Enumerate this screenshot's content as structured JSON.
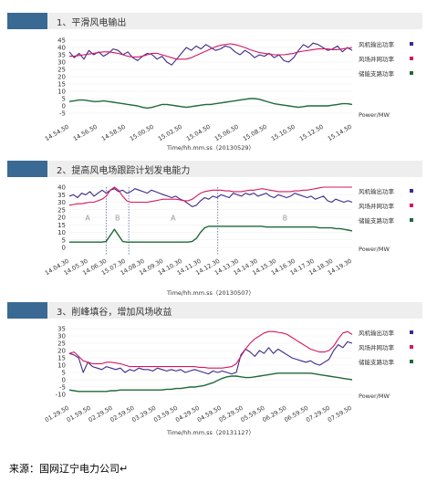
{
  "sections": [
    {
      "title": "1、平滑风电输出"
    },
    {
      "title": "2、提高风电场跟踪计划发电能力"
    },
    {
      "title": "3、削峰填谷，增加风场收益"
    }
  ],
  "colors": {
    "wind": "#3d2a8c",
    "grid": "#d6175f",
    "storage": "#1f6a3a",
    "tag": "#3a6a94"
  },
  "source_text": "来源：国网辽宁电力公司↵",
  "chart_data": [
    {
      "type": "line",
      "y_ticks": [
        "45",
        "40",
        "35",
        "30",
        "25",
        "20",
        "15",
        "10",
        "5",
        "0",
        "-5"
      ],
      "ylim": [
        -5,
        45
      ],
      "x_ticks": [
        "14.54.50",
        "14.56.50",
        "14.58.50",
        "15.00.50",
        "15.02.50",
        "15.04.50",
        "15.06.50",
        "15.08.50",
        "15.10.50",
        "15.12.50",
        "15.14.50"
      ],
      "xlabel": "Time/hh.mm.ss（20130529）",
      "ylabel": "Power/MW",
      "legend": [
        "风机输出功率",
        "风场并网功率",
        "储能支路功率"
      ],
      "series": [
        {
          "name": "风机输出功率",
          "values": [
            37,
            33,
            36,
            32,
            38,
            35,
            37,
            34,
            36,
            39,
            38,
            35,
            37,
            33,
            31,
            34,
            36,
            35,
            32,
            34,
            30,
            28,
            32,
            36,
            40,
            38,
            41,
            39,
            42,
            40,
            38,
            39,
            41,
            40,
            37,
            35,
            38,
            36,
            33,
            35,
            34,
            36,
            33,
            35,
            31,
            30,
            33,
            38,
            42,
            40,
            43,
            42,
            40,
            38,
            39,
            41,
            37,
            40,
            38
          ]
        },
        {
          "name": "风场并网功率",
          "values": [
            34,
            34,
            34.5,
            35,
            35.5,
            36,
            36.5,
            37,
            37,
            36.5,
            36,
            35,
            34,
            33.5,
            33.5,
            34,
            35,
            36,
            36,
            35,
            34,
            33,
            32,
            32,
            32,
            33,
            34.5,
            36,
            37.5,
            39,
            40.5,
            41.5,
            42,
            42.5,
            42,
            41,
            40,
            38.5,
            37.5,
            36.5,
            36,
            35.5,
            35,
            35,
            35,
            35.5,
            36,
            37,
            37.5,
            38,
            38.5,
            39,
            39,
            39,
            38.5,
            38.5,
            39,
            39.5,
            40
          ]
        },
        {
          "name": "储能支路功率",
          "values": [
            3,
            3.5,
            4,
            4,
            3.5,
            3,
            3,
            3.5,
            3,
            2.5,
            2,
            1.5,
            1,
            0.5,
            0,
            -1,
            -1.5,
            -1,
            0,
            1,
            1,
            0.5,
            0,
            -0.5,
            -1,
            -0.5,
            0,
            0.5,
            1,
            1,
            1.5,
            2,
            2.5,
            3,
            3.5,
            4,
            4.5,
            5,
            5,
            4.5,
            3.5,
            2.5,
            1.5,
            1,
            0.5,
            0,
            -0.5,
            -1,
            -0.5,
            0,
            0,
            0,
            0,
            0,
            0.5,
            1,
            1.5,
            1.5,
            1
          ]
        }
      ]
    },
    {
      "type": "line",
      "y_ticks": [
        "40",
        "35",
        "30",
        "25",
        "20",
        "15",
        "10",
        "5",
        "0"
      ],
      "ylim": [
        0,
        40
      ],
      "x_ticks": [
        "14.04.30",
        "14.05.30",
        "14.06.30",
        "15.07.30",
        "14.08.30",
        "14.09.30",
        "14.10.30",
        "14.11.30",
        "14.12.30",
        "14.13.30",
        "14.14.30",
        "14.15.30",
        "14.16.30",
        "14.17.30",
        "14.18.30",
        "14.19.30"
      ],
      "xlabel": "Time/hh.mm.ss（20130507）",
      "ylabel": "Power/MW",
      "legend": [
        "风机输出功率",
        "风场并网功率",
        "储能支路功率"
      ],
      "regions": [
        {
          "label": "A",
          "from": 0,
          "to": 0.13
        },
        {
          "label": "B",
          "from": 0.13,
          "to": 0.21
        },
        {
          "label": "A",
          "from": 0.21,
          "to": 0.525
        },
        {
          "label": "B",
          "from": 0.525,
          "to": 1
        }
      ],
      "series": [
        {
          "name": "风机输出功率",
          "values": [
            34,
            35,
            33,
            36,
            35,
            37,
            34,
            36,
            38,
            36,
            38,
            39,
            37,
            38,
            36,
            37,
            39,
            38,
            37,
            36,
            38,
            37,
            36,
            35,
            34,
            33,
            34,
            32,
            31,
            29,
            27,
            28,
            31,
            33,
            32,
            34,
            33,
            35,
            34,
            33,
            36,
            35,
            34,
            36,
            35,
            36,
            34,
            35,
            36,
            34,
            33,
            35,
            34,
            33,
            34,
            36,
            35,
            34,
            33,
            34,
            32,
            33,
            34,
            31,
            30,
            32,
            31,
            30,
            31,
            30
          ]
        },
        {
          "name": "风场并网功率",
          "values": [
            28,
            28.5,
            29,
            29,
            29.5,
            30,
            30,
            31,
            32,
            34,
            38,
            40,
            38,
            34,
            31,
            30,
            30,
            30,
            30,
            30,
            30.5,
            31,
            31.5,
            32,
            32,
            32,
            32,
            31.5,
            31,
            31,
            32,
            34,
            36,
            37,
            37.5,
            38,
            38,
            38,
            37.5,
            37.5,
            37,
            37,
            37,
            37.5,
            38,
            38,
            38.5,
            39,
            38.5,
            38,
            37.5,
            37,
            37,
            37,
            37,
            37.5,
            37.5,
            38,
            38,
            38.5,
            39,
            39.5,
            40,
            40,
            40,
            40,
            40,
            40,
            40,
            40
          ]
        },
        {
          "name": "储能支路功率",
          "values": [
            3.5,
            3.5,
            3.5,
            3.5,
            3.5,
            3.5,
            3.5,
            3.5,
            3.5,
            4,
            8,
            12,
            8,
            4,
            3.5,
            3.5,
            3.5,
            3.5,
            3.5,
            3.5,
            3.5,
            3.5,
            3.5,
            3.5,
            3.5,
            3.5,
            3.5,
            3.5,
            3.5,
            3.5,
            4,
            6,
            10,
            13,
            14,
            14,
            14,
            14,
            14,
            14,
            14,
            14,
            14,
            14,
            14,
            14,
            14,
            14,
            13.5,
            13.5,
            13.5,
            13.5,
            13.5,
            13.5,
            13.5,
            13.5,
            13.5,
            13.5,
            13.5,
            13.5,
            13.5,
            13,
            13,
            13,
            13,
            12.5,
            12.5,
            12,
            11.5,
            11
          ]
        }
      ]
    },
    {
      "type": "line",
      "y_ticks": [
        "35",
        "30",
        "25",
        "20",
        "15",
        "10",
        "5",
        "0",
        "-5",
        "-10"
      ],
      "ylim": [
        -10,
        35
      ],
      "x_ticks": [
        "01.29.50",
        "01.59.50",
        "02.29.50",
        "02.59.50",
        "03.29.50",
        "03.59.50",
        "04.29.50",
        "04.59.50",
        "05.29.50",
        "05.59.50",
        "06.29.50",
        "06.59.50",
        "07.29.50",
        "07.59.50"
      ],
      "xlabel": "Time/hh.mm.ss（20131127）",
      "ylabel": "Power/MW",
      "legend": [
        "风机输出功率",
        "风场并网功率",
        "储能支路功率"
      ],
      "series": [
        {
          "name": "风机输出功率",
          "values": [
            18,
            17,
            15,
            5,
            12,
            9,
            8,
            7,
            9,
            8,
            7,
            8,
            5,
            7,
            6,
            8,
            7,
            7,
            6,
            8,
            7,
            6,
            7,
            6,
            7,
            5,
            6,
            7,
            6,
            5,
            4,
            6,
            5,
            6,
            5,
            4,
            5,
            17,
            21,
            19,
            16,
            20,
            18,
            22,
            18,
            21,
            19,
            17,
            15,
            14,
            13,
            12,
            13,
            11,
            10,
            12,
            14,
            20,
            24,
            22,
            26,
            25
          ]
        },
        {
          "name": "风场并网功率",
          "values": [
            18,
            19,
            16,
            13,
            12,
            11,
            11,
            11,
            12,
            12,
            11.5,
            11,
            10,
            9,
            9,
            9,
            9,
            9,
            9,
            9,
            9,
            9,
            9,
            9,
            9,
            9,
            9,
            9,
            8.5,
            8.5,
            8,
            8,
            8,
            8,
            8.5,
            9,
            11,
            16,
            21,
            25,
            28,
            30,
            32,
            33,
            33,
            32.5,
            32,
            31,
            29,
            27,
            25,
            23,
            21,
            20,
            19,
            19,
            20,
            23,
            28,
            32,
            33,
            31
          ]
        },
        {
          "name": "储能支路功率",
          "values": [
            -7,
            -7.5,
            -8,
            -8,
            -8,
            -8,
            -8,
            -8,
            -8,
            -7.5,
            -7.5,
            -7,
            -7,
            -7,
            -7,
            -7,
            -7,
            -7,
            -7,
            -7,
            -7,
            -6.5,
            -6.5,
            -6,
            -6,
            -5.5,
            -5,
            -5,
            -4.5,
            -4,
            -3,
            -2,
            -0.5,
            1,
            2,
            2.5,
            2.5,
            2,
            1.5,
            1.5,
            2,
            2.5,
            3,
            3.5,
            4,
            4.5,
            4.5,
            4.5,
            4.5,
            4.5,
            4.5,
            4.5,
            4.5,
            4,
            3.5,
            3,
            2.5,
            2,
            1.5,
            1,
            0.5,
            0
          ]
        }
      ]
    }
  ]
}
